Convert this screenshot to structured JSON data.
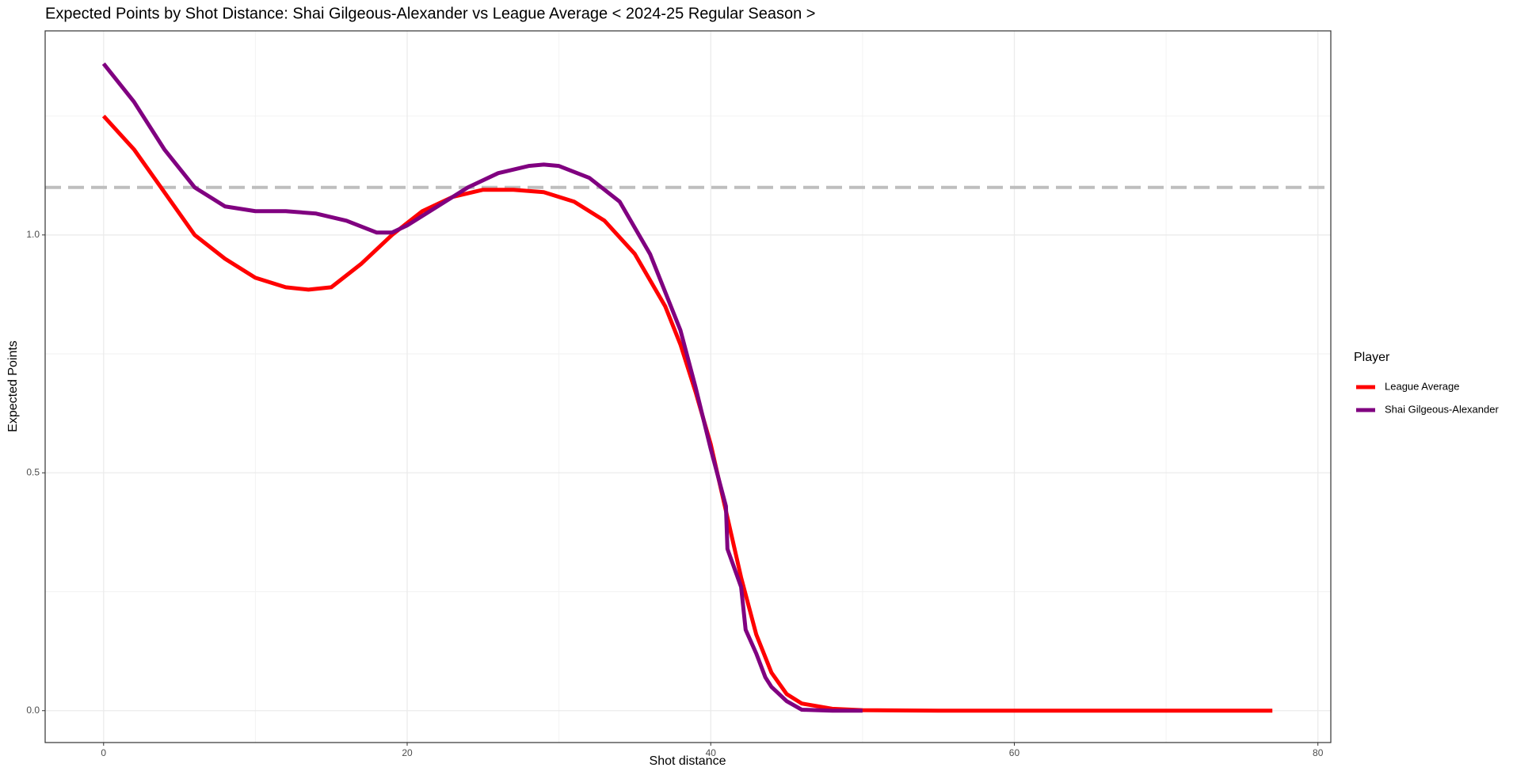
{
  "chart_data": {
    "type": "line",
    "title": "Expected Points by Shot Distance: Shai Gilgeous-Alexander vs League Average < 2024-25 Regular Season >",
    "x_label": "Shot distance",
    "y_label": "Expected Points",
    "legend_title": "Player",
    "legend_position": "right",
    "grid": true,
    "xlim": [
      -3.85,
      80.85
    ],
    "ylim": [
      -0.067,
      1.429
    ],
    "xticks": [
      0,
      20,
      40,
      60,
      80
    ],
    "xminor": [
      10,
      30,
      50,
      70
    ],
    "yticks": [
      {
        "value": 0,
        "label": "0.0"
      },
      0.5,
      {
        "value": 1,
        "label": "1.0"
      }
    ],
    "yminor": [
      0.25,
      0.75,
      1.25
    ],
    "reference_line": {
      "y": 1.1,
      "color": "#bebebe",
      "dashed": true
    },
    "series": [
      {
        "name": "League Average",
        "color": "#ff0000",
        "x": [
          0,
          2,
          4,
          6,
          8,
          10,
          12,
          13.5,
          15,
          17,
          19,
          21,
          23,
          25,
          27,
          29,
          31,
          33,
          35,
          37,
          38,
          39,
          40,
          41,
          42,
          43,
          44,
          45,
          46,
          48,
          50,
          55,
          77
        ],
        "values": [
          1.25,
          1.18,
          1.09,
          1.0,
          0.95,
          0.91,
          0.89,
          0.885,
          0.89,
          0.94,
          1.0,
          1.05,
          1.08,
          1.095,
          1.095,
          1.09,
          1.07,
          1.03,
          0.96,
          0.85,
          0.77,
          0.67,
          0.56,
          0.42,
          0.28,
          0.16,
          0.08,
          0.035,
          0.015,
          0.004,
          0.001,
          0,
          0
        ]
      },
      {
        "name": "Shai Gilgeous-Alexander",
        "color": "#800080",
        "x": [
          0,
          2,
          4,
          6,
          8,
          10,
          12,
          14,
          16,
          18,
          19,
          20,
          22,
          24,
          26,
          28,
          29,
          30,
          32,
          34,
          36,
          38,
          39,
          40,
          41,
          41.1,
          42,
          42.3,
          43,
          43.6,
          44,
          45,
          46,
          48,
          50
        ],
        "values": [
          1.36,
          1.28,
          1.18,
          1.1,
          1.06,
          1.05,
          1.05,
          1.045,
          1.03,
          1.005,
          1.005,
          1.02,
          1.06,
          1.1,
          1.13,
          1.145,
          1.148,
          1.145,
          1.12,
          1.07,
          0.96,
          0.8,
          0.68,
          0.55,
          0.43,
          0.34,
          0.26,
          0.17,
          0.12,
          0.07,
          0.05,
          0.02,
          0.002,
          0,
          0
        ]
      }
    ]
  }
}
